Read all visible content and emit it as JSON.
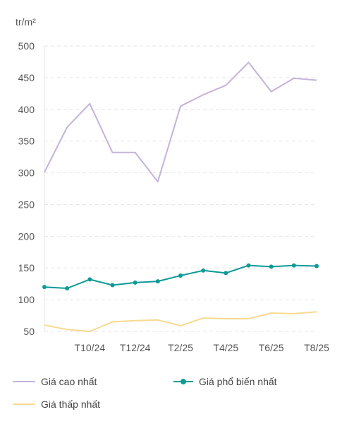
{
  "chart_data": {
    "type": "line",
    "ylabel": "tr/m²",
    "ylim": [
      50,
      500
    ],
    "yticks": [
      50,
      100,
      150,
      200,
      250,
      300,
      350,
      400,
      450,
      500
    ],
    "x": [
      "T8/24",
      "T9/24",
      "T10/24",
      "T11/24",
      "T12/24",
      "T1/25",
      "T2/25",
      "T3/25",
      "T4/25",
      "T5/25",
      "T6/25",
      "T7/25",
      "T8/25"
    ],
    "xtick_labels": [
      "T10/24",
      "T12/24",
      "T2/25",
      "T4/25",
      "T6/25",
      "T8/25"
    ],
    "grid": true,
    "legend_position": "bottom",
    "series": [
      {
        "name": "Giá cao nhất",
        "color": "#c4b3da",
        "markers": false,
        "values": [
          301,
          372,
          409,
          332,
          332,
          286,
          405,
          423,
          438,
          474,
          428,
          449,
          446
        ]
      },
      {
        "name": "Giá phổ biến nhất",
        "color": "#0d9a96",
        "markers": true,
        "values": [
          120,
          118,
          132,
          123,
          127,
          129,
          138,
          146,
          142,
          154,
          152,
          154,
          153
        ]
      },
      {
        "name": "Giá thấp nhất",
        "color": "#f7da90",
        "markers": false,
        "values": [
          60,
          53,
          50,
          65,
          67,
          68,
          59,
          71,
          70,
          70,
          79,
          78,
          81
        ]
      }
    ]
  }
}
